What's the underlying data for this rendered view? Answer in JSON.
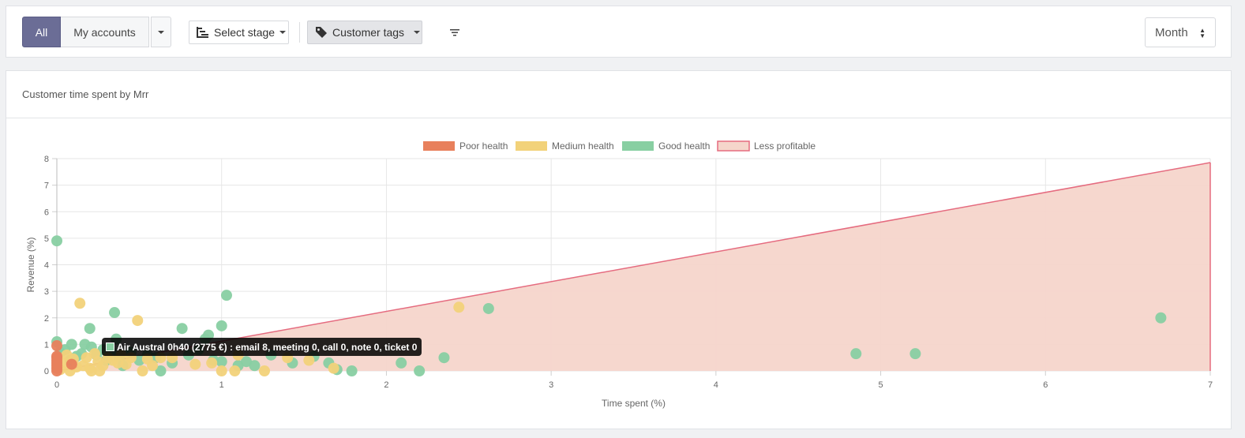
{
  "toolbar": {
    "all_label": "All",
    "my_accounts_label": "My accounts",
    "stage_label": "Select stage",
    "tags_label": "Customer tags",
    "period_value": "Month"
  },
  "panel": {
    "title": "Customer time spent by Mrr"
  },
  "tooltip": {
    "text": "Air Austral 0h40 (2775 €) : email 8, meeting 0, call 0, note 0, ticket 0",
    "color": "#88cfa2"
  },
  "colors": {
    "poor": "#e8805c",
    "medium": "#f2d27a",
    "good": "#88cfa2",
    "area_fill": "#f5d5cb",
    "area_line": "#e56b7f"
  },
  "chart_data": {
    "type": "scatter",
    "title": "",
    "xlabel": "Time spent (%)",
    "ylabel": "Revenue (%)",
    "xlim": [
      0,
      7
    ],
    "ylim": [
      0,
      8
    ],
    "xticks": [
      "0",
      "1",
      "2",
      "3",
      "4",
      "5",
      "6",
      "7"
    ],
    "yticks": [
      "0",
      "1",
      "2",
      "3",
      "4",
      "5",
      "6",
      "7",
      "8"
    ],
    "grid": true,
    "legend_position": "top-center",
    "legend": [
      {
        "label": "Poor health",
        "key": "poor"
      },
      {
        "label": "Medium health",
        "key": "medium"
      },
      {
        "label": "Good health",
        "key": "good"
      },
      {
        "label": "Less profitable",
        "key": "area"
      }
    ],
    "area": {
      "name": "Less profitable",
      "x": [
        0,
        7
      ],
      "y": [
        0,
        7.85
      ]
    },
    "series": [
      {
        "name": "Poor health",
        "key": "poor",
        "points": [
          [
            0.0,
            0.0
          ],
          [
            0.0,
            0.1
          ],
          [
            0.0,
            0.2
          ],
          [
            0.0,
            0.3
          ],
          [
            0.0,
            0.4
          ],
          [
            0.0,
            0.5
          ],
          [
            0.0,
            0.55
          ],
          [
            0.0,
            0.95
          ],
          [
            0.09,
            0.25
          ]
        ]
      },
      {
        "name": "Medium health",
        "key": "medium",
        "points": [
          [
            0.02,
            0.05
          ],
          [
            0.04,
            0.3
          ],
          [
            0.06,
            0.6
          ],
          [
            0.08,
            0.0
          ],
          [
            0.1,
            0.45
          ],
          [
            0.12,
            0.15
          ],
          [
            0.14,
            2.55
          ],
          [
            0.16,
            0.2
          ],
          [
            0.18,
            0.5
          ],
          [
            0.2,
            0.1
          ],
          [
            0.21,
            0.0
          ],
          [
            0.23,
            0.65
          ],
          [
            0.25,
            0.35
          ],
          [
            0.26,
            0.0
          ],
          [
            0.28,
            0.2
          ],
          [
            0.31,
            0.5
          ],
          [
            0.34,
            0.4
          ],
          [
            0.37,
            0.3
          ],
          [
            0.39,
            0.6
          ],
          [
            0.42,
            0.25
          ],
          [
            0.45,
            0.5
          ],
          [
            0.49,
            1.9
          ],
          [
            0.52,
            0.0
          ],
          [
            0.55,
            0.45
          ],
          [
            0.58,
            0.2
          ],
          [
            0.63,
            0.5
          ],
          [
            0.7,
            0.5
          ],
          [
            0.84,
            0.25
          ],
          [
            0.94,
            0.3
          ],
          [
            1.0,
            0.0
          ],
          [
            1.08,
            0.0
          ],
          [
            1.1,
            0.6
          ],
          [
            1.26,
            0.0
          ],
          [
            1.4,
            0.5
          ],
          [
            1.53,
            0.4
          ],
          [
            1.68,
            0.1
          ],
          [
            2.44,
            2.4
          ]
        ]
      },
      {
        "name": "Good health",
        "key": "good",
        "points": [
          [
            0.0,
            4.9
          ],
          [
            0.0,
            1.1
          ],
          [
            0.02,
            0.7
          ],
          [
            0.05,
            0.8
          ],
          [
            0.08,
            0.4
          ],
          [
            0.09,
            1.0
          ],
          [
            0.12,
            0.55
          ],
          [
            0.15,
            0.65
          ],
          [
            0.17,
            1.0
          ],
          [
            0.2,
            1.6
          ],
          [
            0.21,
            0.9
          ],
          [
            0.24,
            0.6
          ],
          [
            0.28,
            0.8
          ],
          [
            0.3,
            0.4
          ],
          [
            0.33,
            0.7
          ],
          [
            0.35,
            2.2
          ],
          [
            0.36,
            1.2
          ],
          [
            0.38,
            0.5
          ],
          [
            0.4,
            0.2
          ],
          [
            0.45,
            0.7
          ],
          [
            0.5,
            0.4
          ],
          [
            0.55,
            0.6
          ],
          [
            0.6,
            0.5
          ],
          [
            0.63,
            0.0
          ],
          [
            0.7,
            0.3
          ],
          [
            0.76,
            1.6
          ],
          [
            0.8,
            0.6
          ],
          [
            0.86,
            0.8
          ],
          [
            0.9,
            1.2
          ],
          [
            0.92,
            1.35
          ],
          [
            0.95,
            0.4
          ],
          [
            1.0,
            1.7
          ],
          [
            1.0,
            0.35
          ],
          [
            1.03,
            2.85
          ],
          [
            1.1,
            0.2
          ],
          [
            1.15,
            0.35
          ],
          [
            1.2,
            0.2
          ],
          [
            1.3,
            0.6
          ],
          [
            1.43,
            0.3
          ],
          [
            1.56,
            0.55
          ],
          [
            1.65,
            0.3
          ],
          [
            1.7,
            0.05
          ],
          [
            1.79,
            0.0
          ],
          [
            2.09,
            0.3
          ],
          [
            2.2,
            0.0
          ],
          [
            2.35,
            0.5
          ],
          [
            2.62,
            2.35
          ],
          [
            4.85,
            0.65
          ],
          [
            5.21,
            0.65
          ],
          [
            6.7,
            2.0
          ]
        ]
      }
    ]
  }
}
